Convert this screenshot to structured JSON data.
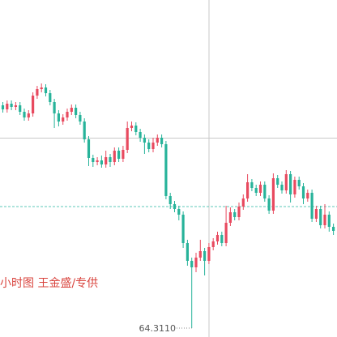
{
  "chart_data": {
    "type": "candlestick",
    "watermark": "小时图   王金盛/专供",
    "annotation": "64.3110",
    "up_color": "#e84a5f",
    "down_color": "#27b39a",
    "ylim": [
      64.3,
      64.716
    ],
    "price_line": 64.461,
    "open": [
      64.586,
      64.581,
      64.588,
      64.584,
      64.586,
      64.578,
      64.571,
      64.576,
      64.598,
      64.606,
      64.608,
      64.601,
      64.59,
      64.576,
      64.566,
      64.571,
      64.578,
      64.583,
      64.574,
      64.566,
      64.544,
      64.521,
      64.516,
      64.518,
      64.513,
      64.522,
      64.516,
      64.53,
      64.52,
      64.531,
      64.558,
      64.561,
      64.553,
      64.546,
      64.54,
      64.532,
      64.54,
      64.546,
      64.538,
      64.474,
      64.464,
      64.458,
      64.451,
      64.416,
      64.394,
      64.386,
      64.398,
      64.406,
      64.394,
      64.411,
      64.418,
      64.426,
      64.416,
      64.441,
      64.454,
      64.448,
      64.461,
      64.471,
      64.491,
      64.484,
      64.478,
      64.488,
      64.471,
      64.456,
      64.496,
      64.488,
      64.481,
      64.501,
      64.476,
      64.494,
      64.486,
      64.471,
      64.478,
      64.446,
      64.458,
      64.438,
      64.451,
      64.436
    ],
    "high": [
      64.59,
      64.592,
      64.592,
      64.59,
      64.59,
      64.582,
      64.58,
      64.602,
      64.61,
      64.613,
      64.612,
      64.605,
      64.594,
      64.58,
      64.575,
      64.582,
      64.587,
      64.587,
      64.578,
      64.57,
      64.548,
      64.525,
      64.522,
      64.524,
      64.53,
      64.526,
      64.534,
      64.534,
      64.536,
      64.566,
      64.566,
      64.565,
      64.557,
      64.55,
      64.544,
      64.546,
      64.55,
      64.55,
      64.542,
      64.478,
      64.468,
      64.462,
      64.455,
      64.42,
      64.398,
      64.404,
      64.42,
      64.41,
      64.416,
      64.422,
      64.43,
      64.43,
      64.462,
      64.46,
      64.458,
      64.466,
      64.476,
      64.501,
      64.495,
      64.488,
      64.492,
      64.492,
      64.475,
      64.502,
      64.5,
      64.492,
      64.506,
      64.505,
      64.498,
      64.498,
      64.49,
      64.482,
      64.482,
      64.462,
      64.462,
      64.464,
      64.455,
      64.44
    ],
    "low": [
      64.577,
      64.577,
      64.58,
      64.58,
      64.574,
      64.567,
      64.567,
      64.572,
      64.594,
      64.602,
      64.597,
      64.586,
      64.558,
      64.56,
      64.562,
      64.567,
      64.574,
      64.57,
      64.562,
      64.54,
      64.511,
      64.51,
      64.512,
      64.509,
      64.509,
      64.51,
      64.512,
      64.516,
      64.516,
      64.527,
      64.554,
      64.549,
      64.541,
      64.526,
      64.528,
      64.528,
      64.536,
      64.534,
      64.47,
      64.458,
      64.454,
      64.444,
      64.41,
      64.388,
      64.311,
      64.38,
      64.394,
      64.376,
      64.39,
      64.407,
      64.414,
      64.412,
      64.412,
      64.437,
      64.444,
      64.444,
      64.457,
      64.467,
      64.48,
      64.474,
      64.474,
      64.467,
      64.452,
      64.452,
      64.484,
      64.477,
      64.477,
      64.466,
      64.472,
      64.482,
      64.464,
      64.467,
      64.442,
      64.442,
      64.434,
      64.434,
      64.43,
      64.426
    ],
    "close": [
      64.581,
      64.588,
      64.584,
      64.586,
      64.578,
      64.571,
      64.576,
      64.598,
      64.606,
      64.608,
      64.601,
      64.59,
      64.576,
      64.566,
      64.571,
      64.578,
      64.583,
      64.574,
      64.566,
      64.544,
      64.521,
      64.516,
      64.518,
      64.513,
      64.522,
      64.516,
      64.53,
      64.52,
      64.531,
      64.558,
      64.561,
      64.553,
      64.546,
      64.54,
      64.532,
      64.54,
      64.546,
      64.538,
      64.474,
      64.464,
      64.458,
      64.451,
      64.416,
      64.394,
      64.386,
      64.398,
      64.406,
      64.394,
      64.411,
      64.418,
      64.426,
      64.416,
      64.441,
      64.454,
      64.448,
      64.461,
      64.471,
      64.491,
      64.484,
      64.478,
      64.488,
      64.471,
      64.456,
      64.496,
      64.488,
      64.481,
      64.501,
      64.476,
      64.494,
      64.486,
      64.471,
      64.478,
      64.446,
      64.458,
      64.438,
      64.451,
      64.436,
      64.431
    ]
  }
}
